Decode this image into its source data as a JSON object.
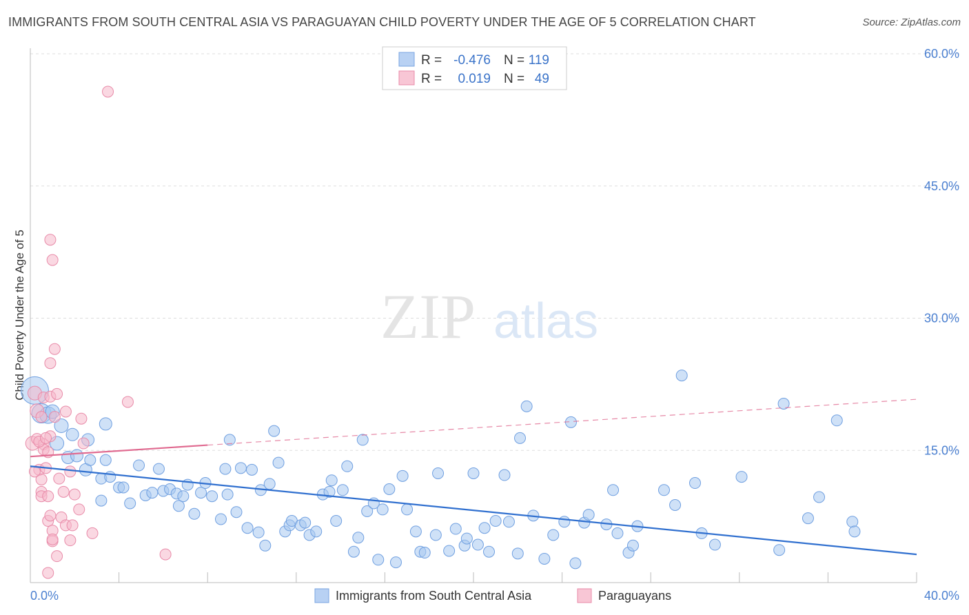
{
  "header": {
    "title": "IMMIGRANTS FROM SOUTH CENTRAL ASIA VS PARAGUAYAN CHILD POVERTY UNDER THE AGE OF 5 CORRELATION CHART",
    "source": "Source: ZipAtlas.com"
  },
  "watermark": {
    "zip": "ZIP",
    "atlas": "atlas"
  },
  "legend": {
    "r_label": "R =",
    "n_label": "N =",
    "series": [
      {
        "r": "-0.476",
        "n": "119"
      },
      {
        "r": "0.019",
        "n": "49"
      }
    ]
  },
  "colors": {
    "blue_fill": "#a8c8f0",
    "blue_stroke": "#6f9fe0",
    "blue_line": "#2f6fcf",
    "pink_fill": "#f6b8cb",
    "pink_stroke": "#e88aa8",
    "pink_line": "#e06a90",
    "grid": "#dddddd",
    "axis_label": "#4a7fd0"
  },
  "chart_data": {
    "type": "scatter",
    "title": "IMMIGRANTS FROM SOUTH CENTRAL ASIA VS PARAGUAYAN CHILD POVERTY UNDER THE AGE OF 5 CORRELATION CHART",
    "xlabel": "",
    "ylabel": "Child Poverty Under the Age of 5",
    "xlim": [
      0,
      40
    ],
    "ylim": [
      0,
      60
    ],
    "x_tick_labels": [
      "0.0%",
      "40.0%"
    ],
    "y_ticks": [
      15,
      30,
      45,
      60
    ],
    "y_tick_labels": [
      "15.0%",
      "30.0%",
      "45.0%",
      "60.0%"
    ],
    "series": [
      {
        "name": "Immigrants from South Central Asia",
        "color": "blue",
        "trend": {
          "x": [
            0,
            40
          ],
          "y": [
            13.2,
            3.2
          ],
          "dashed_from": null
        },
        "points": [
          [
            0.2,
            21.8,
            20
          ],
          [
            0.5,
            19.2,
            14
          ],
          [
            0.8,
            19.0,
            12
          ],
          [
            1.0,
            19.4,
            10
          ],
          [
            1.4,
            17.8,
            10
          ],
          [
            1.2,
            15.8,
            10
          ],
          [
            1.9,
            16.8,
            9
          ],
          [
            1.7,
            14.2,
            9
          ],
          [
            2.1,
            14.4,
            9
          ],
          [
            2.5,
            12.8,
            9
          ],
          [
            2.6,
            16.2,
            9
          ],
          [
            2.7,
            13.9,
            8
          ],
          [
            3.2,
            11.8,
            8
          ],
          [
            3.2,
            9.3,
            8
          ],
          [
            3.4,
            13.9,
            8
          ],
          [
            3.4,
            18.0,
            9
          ],
          [
            3.6,
            12.0,
            8
          ],
          [
            4.0,
            10.8,
            8
          ],
          [
            4.2,
            10.8,
            8
          ],
          [
            4.5,
            9.0,
            8
          ],
          [
            4.9,
            13.3,
            8
          ],
          [
            5.2,
            9.9,
            8
          ],
          [
            5.5,
            10.2,
            8
          ],
          [
            5.8,
            12.9,
            8
          ],
          [
            6.0,
            10.4,
            8
          ],
          [
            6.3,
            10.6,
            8
          ],
          [
            6.6,
            10.1,
            8
          ],
          [
            6.7,
            8.7,
            8
          ],
          [
            6.9,
            9.8,
            8
          ],
          [
            7.1,
            11.1,
            8
          ],
          [
            7.4,
            7.8,
            8
          ],
          [
            7.7,
            10.2,
            8
          ],
          [
            7.9,
            11.3,
            8
          ],
          [
            8.2,
            9.8,
            8
          ],
          [
            8.6,
            7.2,
            8
          ],
          [
            8.8,
            12.9,
            8
          ],
          [
            8.9,
            10.0,
            8
          ],
          [
            9.0,
            16.2,
            8
          ],
          [
            9.3,
            8.0,
            8
          ],
          [
            9.5,
            13.0,
            8
          ],
          [
            9.8,
            6.2,
            8
          ],
          [
            10.0,
            12.8,
            8
          ],
          [
            10.3,
            5.7,
            8
          ],
          [
            10.4,
            10.5,
            8
          ],
          [
            10.6,
            4.2,
            8
          ],
          [
            10.8,
            11.2,
            8
          ],
          [
            11.0,
            17.2,
            8
          ],
          [
            11.2,
            13.6,
            8
          ],
          [
            11.5,
            5.8,
            8
          ],
          [
            11.7,
            6.5,
            8
          ],
          [
            11.8,
            7.0,
            8
          ],
          [
            12.2,
            6.5,
            8
          ],
          [
            12.4,
            6.8,
            8
          ],
          [
            12.6,
            5.4,
            8
          ],
          [
            12.9,
            5.8,
            8
          ],
          [
            13.2,
            10.0,
            8
          ],
          [
            13.5,
            10.3,
            8
          ],
          [
            13.6,
            11.6,
            8
          ],
          [
            13.8,
            7.0,
            8
          ],
          [
            14.1,
            10.5,
            8
          ],
          [
            14.3,
            13.2,
            8
          ],
          [
            14.6,
            3.5,
            8
          ],
          [
            14.8,
            5.1,
            8
          ],
          [
            15.0,
            16.2,
            8
          ],
          [
            15.2,
            8.1,
            8
          ],
          [
            15.5,
            9.0,
            8
          ],
          [
            15.7,
            2.6,
            8
          ],
          [
            15.9,
            8.3,
            8
          ],
          [
            16.2,
            10.6,
            8
          ],
          [
            16.5,
            2.3,
            8
          ],
          [
            16.8,
            12.1,
            8
          ],
          [
            17.0,
            8.3,
            8
          ],
          [
            17.4,
            5.8,
            8
          ],
          [
            17.6,
            3.5,
            8
          ],
          [
            17.8,
            3.4,
            8
          ],
          [
            18.3,
            5.4,
            8
          ],
          [
            18.4,
            12.4,
            8
          ],
          [
            18.9,
            3.6,
            8
          ],
          [
            19.2,
            6.1,
            8
          ],
          [
            19.6,
            4.2,
            8
          ],
          [
            19.7,
            5.0,
            8
          ],
          [
            20.0,
            12.4,
            8
          ],
          [
            20.2,
            4.3,
            8
          ],
          [
            20.5,
            6.2,
            8
          ],
          [
            20.7,
            3.5,
            8
          ],
          [
            21.0,
            7.0,
            8
          ],
          [
            21.4,
            12.2,
            8
          ],
          [
            21.6,
            6.9,
            8
          ],
          [
            22.0,
            3.3,
            8
          ],
          [
            22.1,
            16.4,
            8
          ],
          [
            22.4,
            20.0,
            8
          ],
          [
            22.7,
            7.6,
            8
          ],
          [
            23.2,
            2.7,
            8
          ],
          [
            23.6,
            5.4,
            8
          ],
          [
            24.1,
            6.9,
            8
          ],
          [
            24.4,
            18.2,
            8
          ],
          [
            24.6,
            2.2,
            8
          ],
          [
            25.0,
            6.8,
            8
          ],
          [
            25.2,
            7.7,
            8
          ],
          [
            26.0,
            6.6,
            8
          ],
          [
            26.3,
            10.5,
            8
          ],
          [
            26.5,
            5.6,
            8
          ],
          [
            27.0,
            3.4,
            8
          ],
          [
            27.2,
            4.2,
            8
          ],
          [
            27.4,
            6.4,
            8
          ],
          [
            28.6,
            10.5,
            8
          ],
          [
            29.1,
            8.8,
            8
          ],
          [
            29.4,
            23.5,
            8
          ],
          [
            30.3,
            5.6,
            8
          ],
          [
            30.9,
            4.3,
            8
          ],
          [
            33.8,
            3.7,
            8
          ],
          [
            35.1,
            7.3,
            8
          ],
          [
            35.6,
            9.7,
            8
          ],
          [
            37.1,
            6.9,
            8
          ],
          [
            37.2,
            5.8,
            8
          ],
          [
            36.4,
            18.4,
            8
          ],
          [
            34.0,
            20.3,
            8
          ],
          [
            30.0,
            11.3,
            8
          ],
          [
            32.1,
            12.0,
            8
          ]
        ]
      },
      {
        "name": "Paraguayans",
        "color": "pink",
        "trend": {
          "x": [
            0,
            40
          ],
          "y": [
            14.3,
            20.8
          ],
          "dashed_from": 8.0
        },
        "points": [
          [
            0.1,
            15.8,
            10
          ],
          [
            0.2,
            21.5,
            10
          ],
          [
            0.3,
            19.5,
            10
          ],
          [
            0.3,
            16.3,
            8
          ],
          [
            0.4,
            12.8,
            8
          ],
          [
            0.5,
            11.7,
            8
          ],
          [
            0.5,
            10.3,
            8
          ],
          [
            0.5,
            9.8,
            8
          ],
          [
            0.5,
            18.8,
            8
          ],
          [
            0.6,
            15.7,
            8
          ],
          [
            0.6,
            21.0,
            8
          ],
          [
            0.6,
            15.1,
            8
          ],
          [
            0.7,
            13.0,
            8
          ],
          [
            0.8,
            14.8,
            8
          ],
          [
            0.8,
            9.8,
            8
          ],
          [
            0.8,
            7.0,
            8
          ],
          [
            0.8,
            1.1,
            8
          ],
          [
            0.9,
            38.9,
            8
          ],
          [
            0.9,
            24.9,
            8
          ],
          [
            0.9,
            7.6,
            8
          ],
          [
            0.9,
            21.1,
            8
          ],
          [
            0.9,
            16.6,
            8
          ],
          [
            1.0,
            36.6,
            8
          ],
          [
            1.0,
            5.9,
            8
          ],
          [
            1.0,
            4.7,
            8
          ],
          [
            1.0,
            4.9,
            8
          ],
          [
            1.1,
            26.5,
            8
          ],
          [
            1.1,
            18.8,
            8
          ],
          [
            1.2,
            21.4,
            8
          ],
          [
            1.2,
            3.0,
            8
          ],
          [
            1.3,
            11.8,
            8
          ],
          [
            1.4,
            7.4,
            8
          ],
          [
            1.5,
            10.3,
            8
          ],
          [
            1.6,
            19.4,
            8
          ],
          [
            1.6,
            6.5,
            8
          ],
          [
            1.8,
            4.8,
            8
          ],
          [
            1.9,
            6.5,
            8
          ],
          [
            2.0,
            10.0,
            8
          ],
          [
            2.2,
            8.3,
            8
          ],
          [
            2.3,
            18.6,
            8
          ],
          [
            2.4,
            15.8,
            8
          ],
          [
            2.8,
            5.6,
            8
          ],
          [
            3.5,
            55.7,
            8
          ],
          [
            4.4,
            20.5,
            8
          ],
          [
            6.1,
            3.2,
            8
          ],
          [
            0.4,
            16.0,
            8
          ],
          [
            0.2,
            12.6,
            8
          ],
          [
            0.7,
            16.4,
            8
          ],
          [
            1.8,
            12.6,
            8
          ]
        ]
      }
    ]
  },
  "bottom_legend": {
    "items": [
      {
        "label": "Immigrants from South Central Asia"
      },
      {
        "label": "Paraguayans"
      }
    ]
  }
}
